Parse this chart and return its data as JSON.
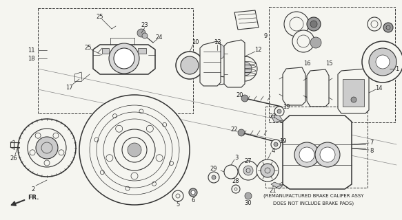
{
  "bg_color": "#f5f5f0",
  "line_color": "#333333",
  "text_color": "#222222",
  "note_line1": "(REMANUFACTURED BRAKE CALIPER ASSY",
  "note_line2": "DOES NOT INCLUDE BRAKE PADS)",
  "figsize": [
    5.83,
    3.2
  ],
  "dpi": 100
}
